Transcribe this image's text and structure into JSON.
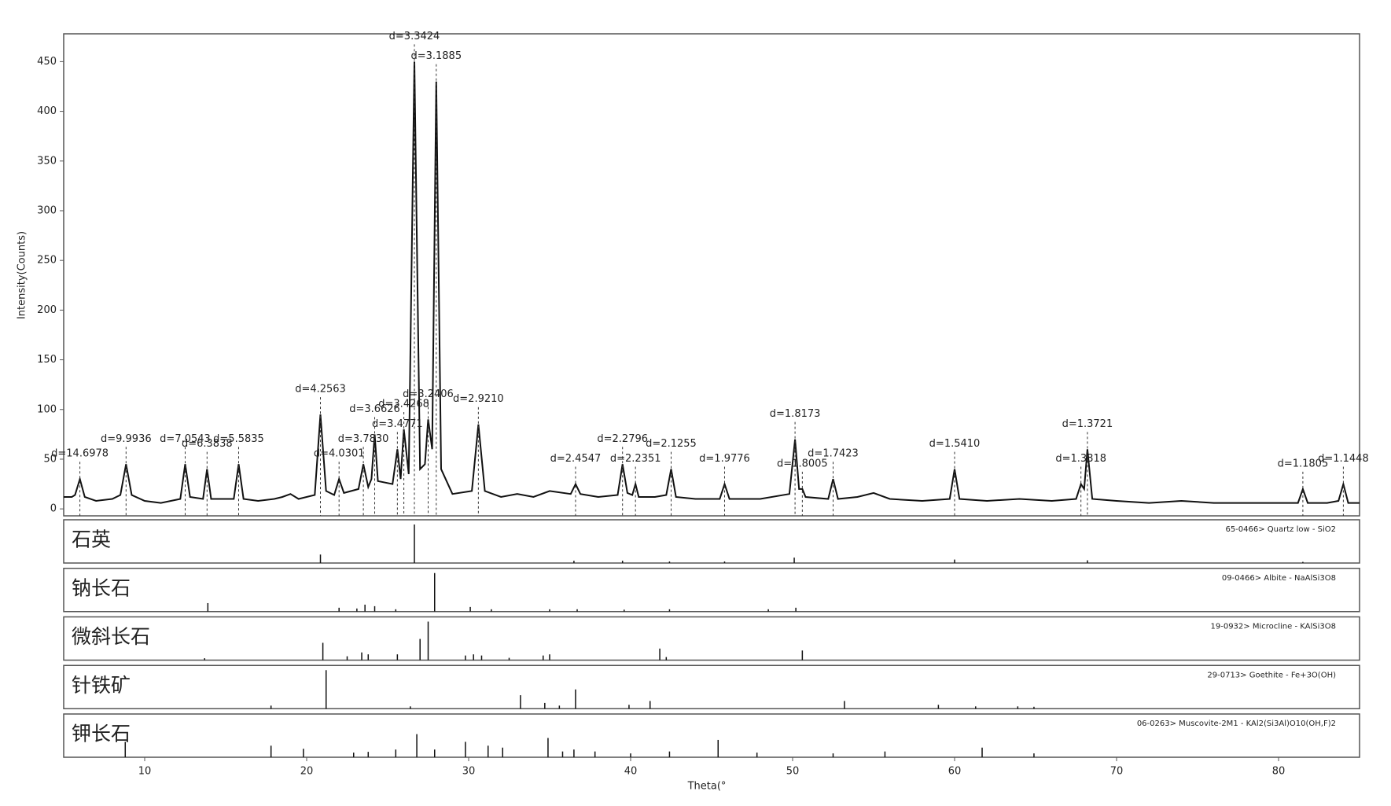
{
  "chart_data": {
    "type": "line",
    "color": "#111111",
    "ylabel": "Intensity(Counts)",
    "xlabel": "Theta(°",
    "xlim": [
      5,
      85
    ],
    "xticks": [
      10,
      20,
      30,
      40,
      50,
      60,
      70,
      80
    ],
    "ylim": [
      -7,
      478
    ],
    "yticks": [
      0,
      50,
      100,
      150,
      200,
      250,
      300,
      350,
      400,
      450
    ],
    "x": [
      5,
      5.5,
      5.7,
      6,
      6.3,
      7,
      8,
      8.5,
      8.85,
      9.2,
      10,
      11,
      12.2,
      12.5,
      12.8,
      13.6,
      13.85,
      14.1,
      15.5,
      15.8,
      16.1,
      17,
      18,
      18.5,
      19,
      19.5,
      20.5,
      20.85,
      21.2,
      21.7,
      22,
      22.3,
      23.2,
      23.5,
      23.8,
      24,
      24.2,
      24.4,
      25.3,
      25.6,
      25.8,
      26,
      26.3,
      26.65,
      27,
      27.3,
      27.5,
      27.75,
      28,
      28.3,
      29,
      30.2,
      30.6,
      31,
      32,
      33,
      34,
      35,
      36.3,
      36.6,
      36.9,
      38,
      39.2,
      39.5,
      39.8,
      40.1,
      40.3,
      40.5,
      41.5,
      42.2,
      42.5,
      42.8,
      44,
      45.5,
      45.8,
      46.1,
      47,
      48,
      49.8,
      50.15,
      50.4,
      50.6,
      50.8,
      52.2,
      52.5,
      52.8,
      54,
      55,
      56,
      58,
      59.7,
      60,
      60.3,
      62,
      64,
      66,
      67.5,
      67.8,
      68,
      68.2,
      68.5,
      70,
      72,
      74,
      76,
      78,
      80,
      81.2,
      81.5,
      81.8,
      83,
      83.7,
      84,
      84.3,
      85
    ],
    "values": [
      12,
      12,
      14,
      30,
      12,
      8,
      10,
      14,
      45,
      14,
      8,
      6,
      10,
      45,
      12,
      10,
      40,
      10,
      10,
      45,
      10,
      8,
      10,
      12,
      15,
      10,
      14,
      95,
      18,
      14,
      30,
      16,
      20,
      45,
      22,
      30,
      75,
      28,
      25,
      60,
      30,
      80,
      35,
      450,
      40,
      45,
      90,
      60,
      430,
      40,
      15,
      18,
      85,
      18,
      12,
      15,
      12,
      18,
      15,
      25,
      15,
      12,
      14,
      45,
      16,
      14,
      25,
      12,
      12,
      14,
      40,
      12,
      10,
      10,
      25,
      10,
      10,
      10,
      15,
      70,
      20,
      20,
      12,
      10,
      30,
      10,
      12,
      16,
      10,
      8,
      10,
      40,
      10,
      8,
      10,
      8,
      10,
      25,
      20,
      60,
      10,
      8,
      6,
      8,
      6,
      6,
      6,
      6,
      20,
      6,
      6,
      8,
      25,
      6,
      6
    ],
    "annotations": [
      {
        "x": 6,
        "label": "d=14.6978"
      },
      {
        "x": 8.85,
        "label": "d=9.9936"
      },
      {
        "x": 12.5,
        "label": "d=7.0543"
      },
      {
        "x": 13.85,
        "label": "d=6.3838"
      },
      {
        "x": 15.8,
        "label": "d=5.5835"
      },
      {
        "x": 20.85,
        "label": "d=4.2563"
      },
      {
        "x": 22,
        "label": "d=4.0301"
      },
      {
        "x": 23.5,
        "label": "d=3.7830"
      },
      {
        "x": 24.2,
        "label": "d=3.6626"
      },
      {
        "x": 25.6,
        "label": "d=3.4771"
      },
      {
        "x": 26,
        "label": "d=3.4268"
      },
      {
        "x": 26.65,
        "label": "d=3.3424"
      },
      {
        "x": 27.5,
        "label": "d=3.2406"
      },
      {
        "x": 28,
        "label": "d=3.1885"
      },
      {
        "x": 30.6,
        "label": "d=2.9210"
      },
      {
        "x": 36.6,
        "label": "d=2.4547"
      },
      {
        "x": 39.5,
        "label": "d=2.2796"
      },
      {
        "x": 40.3,
        "label": "d=2.2351"
      },
      {
        "x": 42.5,
        "label": "d=2.1255"
      },
      {
        "x": 45.8,
        "label": "d=1.9776"
      },
      {
        "x": 50.15,
        "label": "d=1.8173"
      },
      {
        "x": 50.6,
        "label": "d=1.8005"
      },
      {
        "x": 52.5,
        "label": "d=1.7423"
      },
      {
        "x": 60,
        "label": "d=1.5410"
      },
      {
        "x": 67.8,
        "label": "d=1.3818"
      },
      {
        "x": 68.2,
        "label": "d=1.3721"
      },
      {
        "x": 81.5,
        "label": "d=1.1805"
      },
      {
        "x": 84,
        "label": "d=1.1448"
      }
    ],
    "panel_ylim": [
      0,
      100
    ],
    "panels": [
      {
        "label": "石英",
        "card": "65-0466> Quartz low - SiO2",
        "x": [
          20.85,
          26.65,
          36.5,
          39.5,
          42.4,
          45.8,
          50.1,
          60,
          68.2,
          81.5
        ],
        "values": [
          22,
          100,
          6,
          6,
          4,
          4,
          14,
          9,
          7,
          3
        ]
      },
      {
        "label": "钠长石",
        "card": "09-0466> Albite - NaAlSi3O8",
        "x": [
          13.9,
          22,
          23.1,
          23.6,
          24.2,
          25.5,
          27.9,
          30.1,
          31.4,
          35,
          36.7,
          39.6,
          42.4,
          48.5,
          50.2
        ],
        "values": [
          22,
          10,
          8,
          18,
          14,
          6,
          100,
          12,
          6,
          6,
          6,
          5,
          6,
          6,
          10
        ]
      },
      {
        "label": "微斜长石",
        "card": "19-0932> Microcline - KAlSi3O8",
        "x": [
          13.7,
          21,
          22.5,
          23.4,
          23.8,
          25.6,
          27,
          27.5,
          29.8,
          30.3,
          30.8,
          32.5,
          34.6,
          35,
          41.8,
          42.2,
          50.6
        ],
        "values": [
          5,
          45,
          10,
          20,
          15,
          15,
          55,
          100,
          12,
          15,
          12,
          6,
          12,
          15,
          30,
          8,
          25
        ]
      },
      {
        "label": "针铁矿",
        "card": "29-0713> Goethite - Fe+3O(OH)",
        "x": [
          17.8,
          21.2,
          26.4,
          33.2,
          34.7,
          35.6,
          36.6,
          39.9,
          41.2,
          53.2,
          59,
          61.3,
          63.9,
          64.9
        ],
        "values": [
          8,
          100,
          6,
          35,
          15,
          8,
          50,
          10,
          20,
          20,
          10,
          6,
          6,
          5
        ]
      },
      {
        "label": "钾长石",
        "card": "06-0263> Muscovite-2M1 - KAl2(Si3Al)O10(OH,F)2",
        "x": [
          8.8,
          17.8,
          19.8,
          22.9,
          23.8,
          25.5,
          26.8,
          27.9,
          29.8,
          31.2,
          32.1,
          34.9,
          35.8,
          36.5,
          37.8,
          40,
          42.4,
          45.4,
          47.8,
          52.5,
          55.7,
          61.7,
          64.9
        ],
        "values": [
          40,
          30,
          22,
          12,
          14,
          20,
          60,
          20,
          40,
          30,
          25,
          50,
          15,
          20,
          15,
          10,
          15,
          45,
          12,
          10,
          15,
          25,
          10
        ]
      }
    ]
  }
}
